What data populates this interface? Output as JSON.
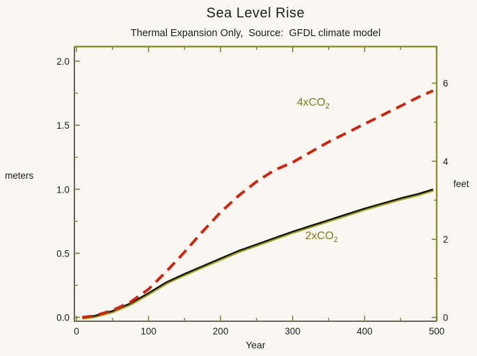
{
  "title": "Sea Level Rise",
  "subtitle": "Thermal Expansion Only,  Source:  GFDL climate model",
  "axis_labels": {
    "left": "meters",
    "right": "feet",
    "bottom": "Year"
  },
  "colors": {
    "background": "#f8f7f1",
    "frame_olive": "#8f8f2e",
    "frame_dark": "#53534a",
    "tick": "#82823a",
    "tick_label": "#1c1c1c",
    "red_curve": "#cc2512",
    "black_curve": "#15150a",
    "black_curve_fringe": "#a3a32c",
    "series_label": "#7c7c1c"
  },
  "chart_data": {
    "type": "line",
    "title": "Sea Level Rise",
    "subtitle": "Thermal Expansion Only,  Source:  GFDL climate model",
    "xlabel": "Year",
    "ylabel_left": "meters",
    "ylabel_right": "feet",
    "xlim": [
      0,
      500
    ],
    "ylim_left_meters": [
      0.0,
      2.0
    ],
    "ylim_right_feet": [
      0,
      6
    ],
    "grid": false,
    "x_major_ticks": [
      {
        "v": 0,
        "label": "0"
      },
      {
        "v": 100,
        "label": "100"
      },
      {
        "v": 200,
        "label": "200"
      },
      {
        "v": 300,
        "label": "300"
      },
      {
        "v": 400,
        "label": "400"
      },
      {
        "v": 500,
        "label": "500"
      }
    ],
    "x_minor_ticks": [
      50,
      150,
      250,
      350,
      450
    ],
    "y_left_major_ticks": [
      {
        "v": 0.0,
        "label": "0.0"
      },
      {
        "v": 0.5,
        "label": "0.5"
      },
      {
        "v": 1.0,
        "label": "1.0"
      },
      {
        "v": 1.5,
        "label": "1.5"
      },
      {
        "v": 2.0,
        "label": "2.0"
      }
    ],
    "y_left_minor_ticks": [
      0.25,
      0.75,
      1.25,
      1.75
    ],
    "y_right_major_ticks": [
      {
        "v": 0,
        "label": "0"
      },
      {
        "v": 2,
        "label": "2"
      },
      {
        "v": 4,
        "label": "4"
      },
      {
        "v": 6,
        "label": "6"
      }
    ],
    "y_right_minor_ticks": [
      1,
      3,
      5
    ],
    "x_years": [
      8,
      25,
      50,
      75,
      100,
      125,
      150,
      175,
      200,
      225,
      250,
      275,
      300,
      325,
      350,
      375,
      400,
      425,
      450,
      475,
      495
    ],
    "series": [
      {
        "name": "2xCO2",
        "label_main": "2xCO",
        "label_sub": "2",
        "style": "solid",
        "color": "#15150a",
        "units": "meters",
        "values": [
          0.0,
          0.012,
          0.05,
          0.11,
          0.19,
          0.275,
          0.34,
          0.4,
          0.46,
          0.52,
          0.57,
          0.62,
          0.67,
          0.715,
          0.76,
          0.805,
          0.85,
          0.89,
          0.93,
          0.965,
          1.0
        ]
      },
      {
        "name": "4xCO2",
        "label_main": "4xCO",
        "label_sub": "2",
        "style": "dashed",
        "color": "#cc2512",
        "units": "meters",
        "values": [
          0.0,
          0.012,
          0.055,
          0.12,
          0.22,
          0.36,
          0.51,
          0.67,
          0.82,
          0.95,
          1.06,
          1.15,
          1.21,
          1.29,
          1.37,
          1.44,
          1.51,
          1.58,
          1.65,
          1.72,
          1.77
        ]
      }
    ]
  }
}
